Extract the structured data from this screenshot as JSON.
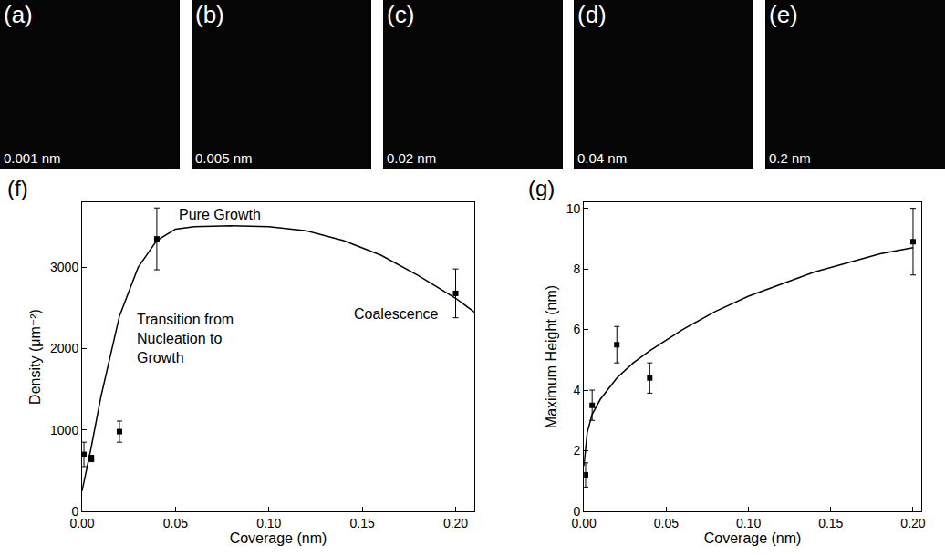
{
  "panels": [
    {
      "label": "(a)",
      "caption": "0.001 nm"
    },
    {
      "label": "(b)",
      "caption": "0.005 nm"
    },
    {
      "label": "(c)",
      "caption": "0.02 nm"
    },
    {
      "label": "(d)",
      "caption": "0.04 nm"
    },
    {
      "label": "(e)",
      "caption": "0.2 nm"
    }
  ],
  "chart_data": [
    {
      "type": "scatter",
      "label": "(f)",
      "x_label": "Coverage (nm)",
      "y_label": "Density (μm⁻²)",
      "xlim": [
        0,
        0.21
      ],
      "xticks": [
        {
          "value": 0,
          "label": "0.00"
        },
        0.05,
        {
          "value": 0.1,
          "label": "0.10"
        },
        0.15,
        {
          "value": 0.2,
          "label": "0.20"
        }
      ],
      "ylim": [
        0,
        3800
      ],
      "yticks": [
        0,
        1000,
        2000,
        3000
      ],
      "annotations": [
        "Pure Growth",
        "Transition from Nucleation to Growth",
        "Coalescence"
      ],
      "series": [
        {
          "type": "scatter",
          "marker": "square",
          "color": "#000000",
          "x": [
            0.001,
            0.005,
            0.02,
            0.04,
            0.2
          ],
          "values": [
            700,
            650,
            980,
            3350,
            2680
          ],
          "errors": [
            150,
            40,
            130,
            380,
            300
          ]
        },
        {
          "type": "line",
          "line_style": "solid",
          "color": "#000000",
          "x": [
            0,
            0.005,
            0.01,
            0.02,
            0.03,
            0.04,
            0.05,
            0.06,
            0.08,
            0.1,
            0.12,
            0.14,
            0.16,
            0.18,
            0.2,
            0.21
          ],
          "values": [
            250,
            800,
            1400,
            2400,
            3000,
            3330,
            3470,
            3500,
            3510,
            3500,
            3450,
            3330,
            3150,
            2900,
            2620,
            2450
          ]
        }
      ]
    },
    {
      "type": "scatter",
      "label": "(g)",
      "x_label": "Coverage (nm)",
      "y_label": "Maximum Height (nm)",
      "xlim": [
        0,
        0.205
      ],
      "xticks": [
        {
          "value": 0,
          "label": "0.00"
        },
        0.05,
        {
          "value": 0.1,
          "label": "0.10"
        },
        0.15,
        {
          "value": 0.2,
          "label": "0.20"
        }
      ],
      "ylim": [
        0,
        10.2
      ],
      "yticks": [
        0,
        2,
        4,
        6,
        8,
        10
      ],
      "series": [
        {
          "type": "scatter",
          "marker": "square",
          "color": "#000000",
          "x": [
            0.001,
            0.005,
            0.02,
            0.04,
            0.2
          ],
          "values": [
            1.2,
            3.5,
            5.5,
            4.4,
            8.9
          ],
          "errors": [
            0.4,
            0.5,
            0.6,
            0.5,
            1.1
          ]
        },
        {
          "type": "line",
          "line_style": "solid",
          "color": "#000000",
          "x": [
            0,
            0.002,
            0.005,
            0.01,
            0.02,
            0.03,
            0.04,
            0.06,
            0.08,
            0.1,
            0.12,
            0.14,
            0.16,
            0.18,
            0.2
          ],
          "values": [
            1.5,
            2.6,
            3.2,
            3.7,
            4.4,
            4.9,
            5.3,
            6.0,
            6.6,
            7.1,
            7.5,
            7.9,
            8.2,
            8.5,
            8.7
          ]
        }
      ]
    }
  ]
}
